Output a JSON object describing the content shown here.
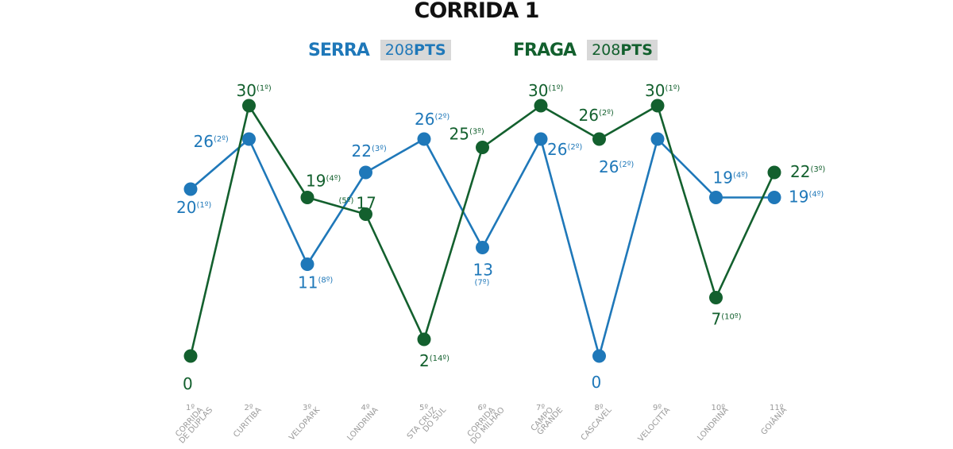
{
  "title": "CORRIDA 1",
  "colors": {
    "serra": "#1f78b9",
    "fraga": "#13602e",
    "axis_text": "#9a9a9a"
  },
  "legend": [
    {
      "name": "SERRA",
      "points_value": "208",
      "points_unit": "PTS"
    },
    {
      "name": "FRAGA",
      "points_value": "208",
      "points_unit": "PTS"
    }
  ],
  "chart_data": {
    "type": "line",
    "title": "CORRIDA 1",
    "ylim": [
      0,
      30
    ],
    "grid": false,
    "legend_position": "top",
    "categories": [
      "1º CORRIDA DE DUPLAS",
      "2º CURITIBA",
      "3º VELOPARK",
      "4º LONDRINA",
      "5º STA CRUZ DO SUL",
      "6º CORRIDA DO MILHÃO",
      "7º CAMPO GRANDE",
      "8º CASCAVEL",
      "9º VELOCITTA",
      "10º LONDRINA",
      "11º GOIÂNIA"
    ],
    "x_labels": [
      {
        "num": "1º",
        "name": [
          "CORRIDA",
          "DE DUPLAS"
        ]
      },
      {
        "num": "2º",
        "name": [
          "CURITIBA"
        ]
      },
      {
        "num": "3º",
        "name": [
          "VELOPARK"
        ]
      },
      {
        "num": "4º",
        "name": [
          "LONDRINA"
        ]
      },
      {
        "num": "5º",
        "name": [
          "STA CRUZ",
          "DO SUL"
        ]
      },
      {
        "num": "6º",
        "name": [
          "CORRIDA",
          "DO MILHÃO"
        ]
      },
      {
        "num": "7º",
        "name": [
          "CAMPO",
          "GRANDE"
        ]
      },
      {
        "num": "8º",
        "name": [
          "CASCAVEL"
        ]
      },
      {
        "num": "9º",
        "name": [
          "VELOCITTA"
        ]
      },
      {
        "num": "10º",
        "name": [
          "LONDRINA"
        ]
      },
      {
        "num": "11º",
        "name": [
          "GOIÂNIA"
        ]
      }
    ],
    "series": [
      {
        "name": "SERRA",
        "values": [
          20,
          26,
          11,
          22,
          26,
          13,
          26,
          0,
          26,
          19,
          19
        ],
        "labels": [
          {
            "value": "20",
            "pos": "(1º)"
          },
          {
            "value": "26",
            "pos": "(2º)"
          },
          {
            "value": "11",
            "pos": "(8º)"
          },
          {
            "value": "22",
            "pos": "(3º)"
          },
          {
            "value": "26",
            "pos": "(2º)"
          },
          {
            "value": "13",
            "pos": "(7º)"
          },
          {
            "value": "26",
            "pos": "(2º)"
          },
          {
            "value": "0",
            "pos": ""
          },
          {
            "value": "26",
            "pos": "(2º)"
          },
          {
            "value": "19",
            "pos": "(4º)"
          },
          {
            "value": "19",
            "pos": "(4º)"
          }
        ]
      },
      {
        "name": "FRAGA",
        "values": [
          0,
          30,
          19,
          17,
          2,
          25,
          30,
          26,
          30,
          7,
          22
        ],
        "labels": [
          {
            "value": "0",
            "pos": ""
          },
          {
            "value": "30",
            "pos": "(1º)"
          },
          {
            "value": "19",
            "pos": "(4º)"
          },
          {
            "value": "17",
            "pos": "(5º)"
          },
          {
            "value": "2",
            "pos": "(14º)"
          },
          {
            "value": "25",
            "pos": "(3º)"
          },
          {
            "value": "30",
            "pos": "(1º)"
          },
          {
            "value": "26",
            "pos": "(2º)"
          },
          {
            "value": "30",
            "pos": "(1º)"
          },
          {
            "value": "7",
            "pos": "(10º)"
          },
          {
            "value": "22",
            "pos": "(3º)"
          }
        ]
      }
    ]
  }
}
